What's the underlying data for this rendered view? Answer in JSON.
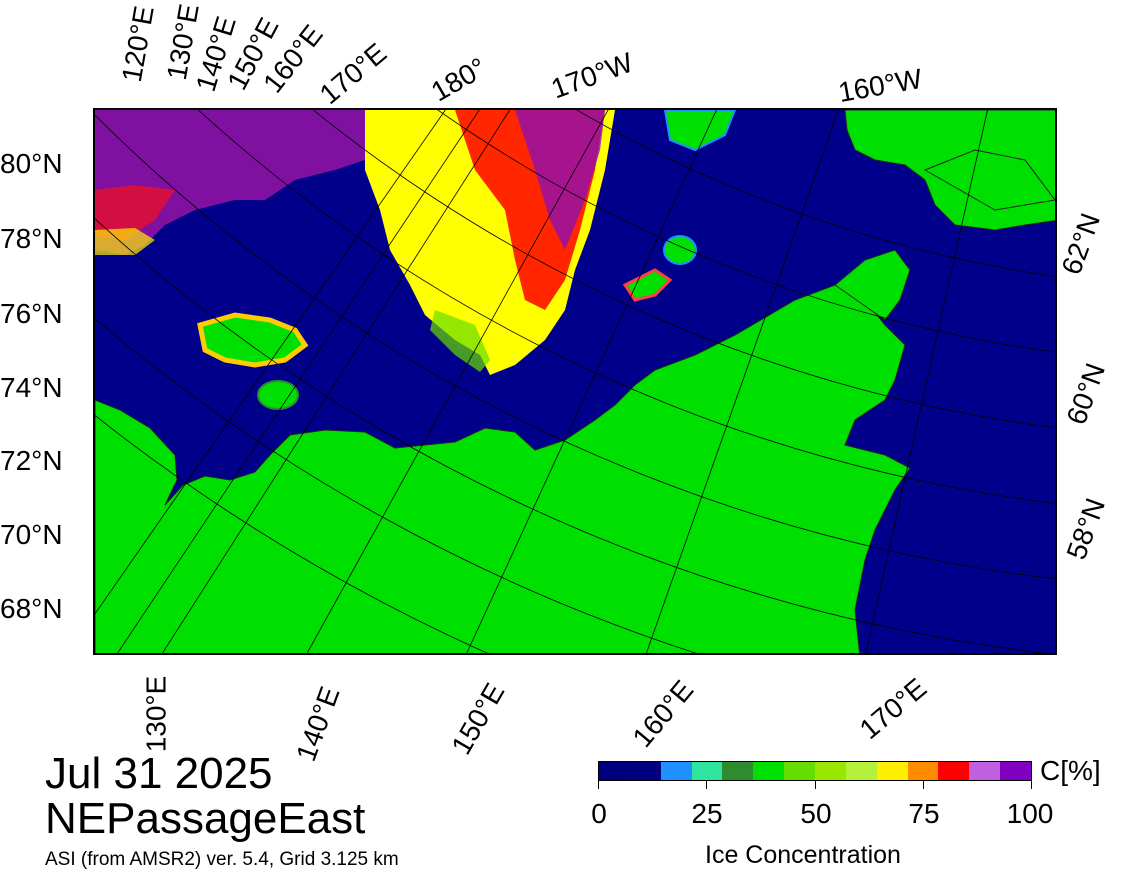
{
  "top_lon_labels": [
    "120°E",
    "130°E",
    "140°E",
    "150°E",
    "160°E",
    "170°E",
    "180°",
    "170°W",
    "160°W"
  ],
  "left_lat_labels": [
    "80°N",
    "78°N",
    "76°N",
    "74°N",
    "72°N",
    "70°N",
    "68°N"
  ],
  "right_lat_labels": [
    "62°N",
    "60°N",
    "58°N"
  ],
  "bottom_lon_labels": [
    "130°E",
    "140°E",
    "150°E",
    "160°E",
    "170°E"
  ],
  "date": "Jul 31 2025",
  "region": "NEPassageEast",
  "source": "ASI (from AMSR2) ver. 5.4,  Grid 3.125 km",
  "colorbar": {
    "unit": "C[%]",
    "title": "Ice Concentration",
    "ticks": [
      "0",
      "25",
      "50",
      "75",
      "100"
    ],
    "colors": [
      "#00007f",
      "#000080",
      "#1e90ff",
      "#2ee5a0",
      "#2e8b2e",
      "#00e000",
      "#66dd00",
      "#99e600",
      "#b4f03c",
      "#ffee00",
      "#ff8c00",
      "#ff0000",
      "#c060e0",
      "#8000c0"
    ]
  },
  "colors": {
    "ocean": "#00008b",
    "land": "#00e000",
    "ice_pack_high": "#9010b0",
    "ice_pack_mid": "#ff0000",
    "ice_pack_low": "#ffff00"
  }
}
